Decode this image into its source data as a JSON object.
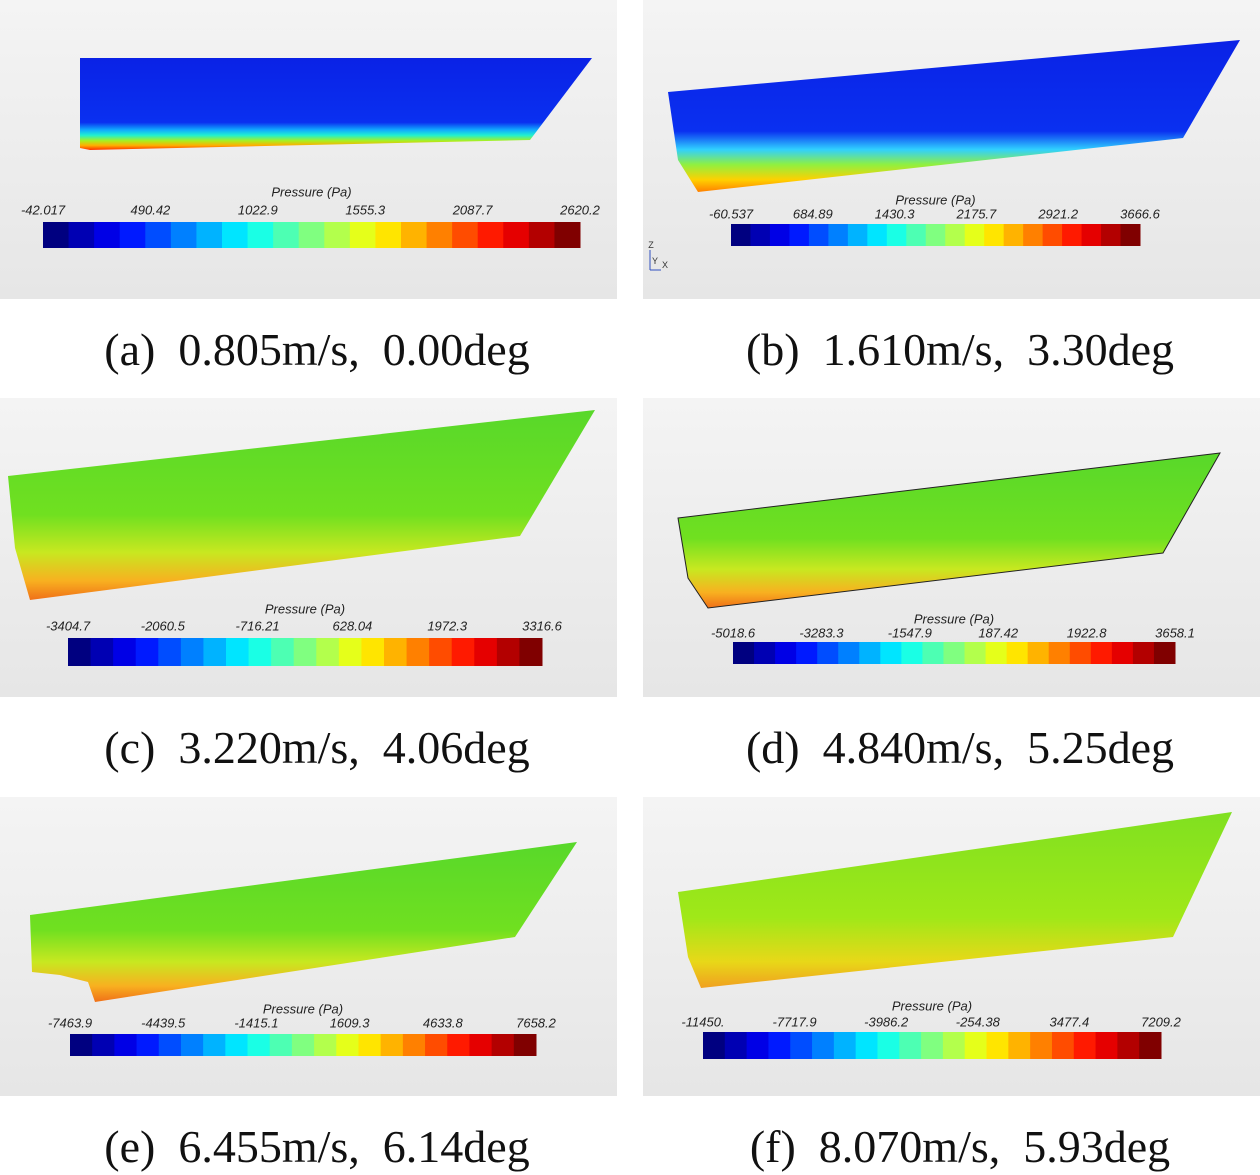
{
  "panels": [
    {
      "legend_title": "Pressure (Pa)",
      "ticks": [
        "-42.017",
        "490.42",
        "1022.9",
        "1555.3",
        "2087.7",
        "2620.2"
      ],
      "caption": "(a)  0.805m/s,  0.00deg"
    },
    {
      "legend_title": "Pressure (Pa)",
      "ticks": [
        "-60.537",
        "684.89",
        "1430.3",
        "2175.7",
        "2921.2",
        "3666.6"
      ],
      "caption": "(b)  1.610m/s,  3.30deg",
      "axes": [
        "Z",
        "Y",
        "X"
      ]
    },
    {
      "legend_title": "Pressure (Pa)",
      "ticks": [
        "-3404.7",
        "-2060.5",
        "-716.21",
        "628.04",
        "1972.3",
        "3316.6"
      ],
      "caption": "(c)  3.220m/s,  4.06deg"
    },
    {
      "legend_title": "Pressure (Pa)",
      "ticks": [
        "-5018.6",
        "-3283.3",
        "-1547.9",
        "187.42",
        "1922.8",
        "3658.1"
      ],
      "caption": "(d)  4.840m/s,  5.25deg"
    },
    {
      "legend_title": "Pressure (Pa)",
      "ticks": [
        "-7463.9",
        "-4439.5",
        "-1415.1",
        "1609.3",
        "4633.8",
        "7658.2"
      ],
      "caption": "(e)  6.455m/s,  6.14deg"
    },
    {
      "legend_title": "Pressure (Pa)",
      "ticks": [
        "-11450.",
        "-7717.9",
        "-3986.2",
        "-254.38",
        "3477.4",
        "7209.2"
      ],
      "caption": "(f)  8.070m/s,  5.93deg"
    }
  ]
}
